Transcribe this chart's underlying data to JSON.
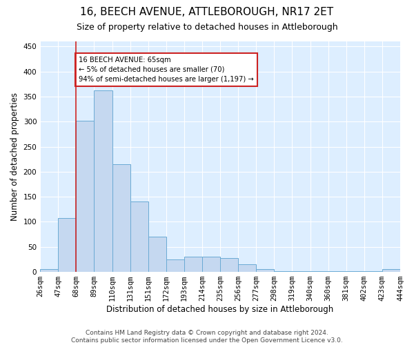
{
  "title": "16, BEECH AVENUE, ATTLEBOROUGH, NR17 2ET",
  "subtitle": "Size of property relative to detached houses in Attleborough",
  "xlabel": "Distribution of detached houses by size in Attleborough",
  "ylabel": "Number of detached properties",
  "bar_values": [
    5,
    108,
    302,
    362,
    215,
    140,
    70,
    25,
    30,
    30,
    28,
    15,
    5,
    2,
    2,
    2,
    2,
    2,
    2,
    5
  ],
  "bin_labels": [
    "26sqm",
    "47sqm",
    "68sqm",
    "89sqm",
    "110sqm",
    "131sqm",
    "151sqm",
    "172sqm",
    "193sqm",
    "214sqm",
    "235sqm",
    "256sqm",
    "277sqm",
    "298sqm",
    "319sqm",
    "340sqm",
    "360sqm",
    "381sqm",
    "402sqm",
    "423sqm",
    "444sqm"
  ],
  "bar_color": "#c5d8f0",
  "bar_edge_color": "#6aaad4",
  "property_line_color": "#cc2222",
  "annotation_text": "16 BEECH AVENUE: 65sqm\n← 5% of detached houses are smaller (70)\n94% of semi-detached houses are larger (1,197) →",
  "annotation_box_color": "#cc2222",
  "ylim": [
    0,
    460
  ],
  "yticks": [
    0,
    50,
    100,
    150,
    200,
    250,
    300,
    350,
    400,
    450
  ],
  "footnote": "Contains HM Land Registry data © Crown copyright and database right 2024.\nContains public sector information licensed under the Open Government Licence v3.0.",
  "background_color": "#ddeeff",
  "fig_bg_color": "#ffffff",
  "title_fontsize": 11,
  "subtitle_fontsize": 9,
  "axis_label_fontsize": 8.5,
  "tick_fontsize": 7.5,
  "footnote_fontsize": 6.5
}
